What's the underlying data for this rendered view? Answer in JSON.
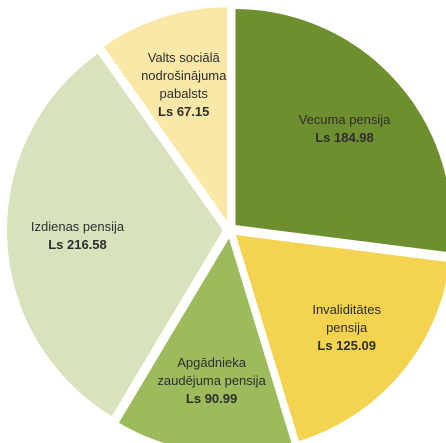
{
  "chart_data": {
    "type": "pie",
    "categories": [
      "Vecuma pensija",
      "Invaliditātes pensija",
      "Apgādnieka zaudējuma pensija",
      "Izdienas pensija",
      "Valts sociālā nodrošinājuma pabalsts"
    ],
    "values": [
      184.98,
      125.09,
      90.99,
      216.58,
      67.15
    ],
    "value_labels": [
      "Ls 184.98",
      "Ls 125.09",
      "Ls 90.99",
      "Ls 216.58",
      "Ls 67.15"
    ],
    "colors": [
      "#6e8f2f",
      "#f3d34f",
      "#9dbb5c",
      "#d8e3bd",
      "#fbe8a9"
    ]
  }
}
